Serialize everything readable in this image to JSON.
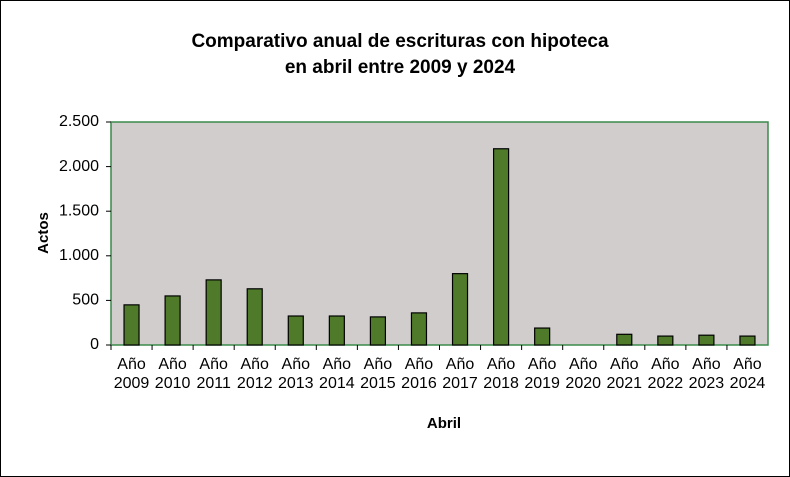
{
  "chart_data": {
    "type": "bar",
    "title": [
      "Comparativo anual de escrituras con hipoteca",
      "en abril entre 2009 y 2024"
    ],
    "x_label": "Abril",
    "y_label": "Actos",
    "categories": [
      "Año 2009",
      "Año 2010",
      "Año 2011",
      "Año 2012",
      "Año 2013",
      "Año 2014",
      "Año 2015",
      "Año 2016",
      "Año 2017",
      "Año 2018",
      "Año 2019",
      "Año 2020",
      "Año 2021",
      "Año 2022",
      "Año 2023",
      "Año 2024"
    ],
    "values": [
      450,
      550,
      730,
      630,
      325,
      325,
      315,
      360,
      800,
      2200,
      190,
      0,
      120,
      100,
      110,
      100
    ],
    "color": "#4f7a2a",
    "ylim": [
      0,
      2500
    ],
    "yticks": [
      0,
      500,
      {
        "value": 1000,
        "label": "1.000"
      },
      {
        "value": 1500,
        "label": "1.500"
      },
      {
        "value": 2000,
        "label": "2.000"
      },
      {
        "value": 2500,
        "label": "2.500"
      }
    ],
    "grid": false
  }
}
